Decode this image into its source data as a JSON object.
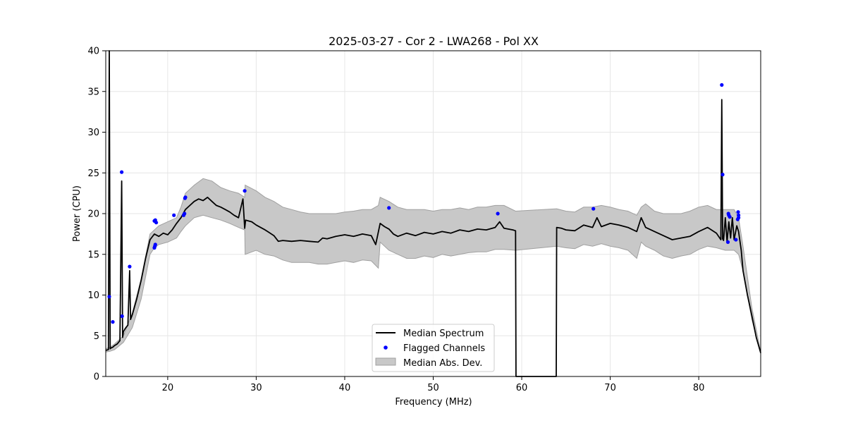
{
  "chart_data": {
    "type": "line",
    "title": "2025-03-27 - Cor 2 - LWA268 - Pol XX",
    "xlabel": "Frequency (MHz)",
    "ylabel": "Power (CPU)",
    "xlim": [
      13,
      87
    ],
    "ylim": [
      0,
      40
    ],
    "x_ticks": [
      20,
      30,
      40,
      50,
      60,
      70,
      80
    ],
    "y_ticks": [
      0,
      5,
      10,
      15,
      20,
      25,
      30,
      35,
      40
    ],
    "x_tick_labels": [
      "20",
      "30",
      "40",
      "50",
      "60",
      "70",
      "80"
    ],
    "y_tick_labels": [
      "0",
      "5",
      "10",
      "15",
      "20",
      "25",
      "30",
      "35",
      "40"
    ],
    "grid": true,
    "legend_position": "bottom-center",
    "colors": {
      "median": "#000000",
      "flagged": "#0000ff",
      "mad_fill": "#c8c8c8",
      "mad_edge": "#a0a0a0",
      "grid": "#e6e6e6"
    },
    "series": [
      {
        "name": "Median Spectrum",
        "kind": "line",
        "x": [
          13.0,
          13.3,
          13.4,
          13.5,
          13.6,
          13.8,
          14.0,
          14.3,
          14.6,
          14.8,
          14.9,
          15.0,
          15.2,
          15.5,
          15.7,
          15.8,
          16.0,
          16.5,
          17.0,
          17.5,
          18.0,
          18.5,
          19.0,
          19.5,
          20.0,
          20.5,
          21.0,
          21.5,
          22.0,
          22.5,
          23.0,
          23.5,
          24.0,
          24.5,
          25.0,
          25.5,
          26.0,
          26.5,
          27.0,
          27.5,
          28.0,
          28.5,
          28.7,
          28.8,
          29.5,
          30.0,
          31.0,
          32.0,
          32.5,
          33.0,
          34.0,
          35.0,
          36.0,
          37.0,
          37.5,
          38.0,
          39.0,
          40.0,
          41.0,
          42.0,
          43.0,
          43.5,
          44.0,
          44.5,
          45.0,
          45.5,
          46.0,
          47.0,
          48.0,
          49.0,
          50.0,
          51.0,
          52.0,
          53.0,
          54.0,
          55.0,
          56.0,
          57.0,
          57.5,
          58.0,
          59.0,
          59.3,
          59.35,
          63.9,
          63.95,
          64.5,
          65.0,
          66.0,
          67.0,
          68.0,
          68.5,
          69.0,
          70.0,
          71.0,
          72.0,
          73.0,
          73.5,
          74.0,
          75.0,
          76.0,
          77.0,
          78.0,
          79.0,
          80.0,
          81.0,
          82.0,
          82.5,
          82.6,
          82.7,
          82.8,
          83.0,
          83.2,
          83.4,
          83.6,
          83.8,
          84.0,
          84.3,
          84.5,
          84.8,
          85.0,
          85.5,
          86.0,
          86.5,
          87.0
        ],
        "values": [
          3.2,
          3.3,
          40.0,
          3.4,
          3.5,
          3.6,
          3.8,
          4.0,
          4.4,
          24.0,
          4.8,
          5.5,
          5.9,
          6.3,
          13.0,
          7.0,
          7.6,
          9.5,
          11.8,
          14.5,
          16.8,
          17.5,
          17.2,
          17.6,
          17.4,
          18.0,
          18.8,
          19.5,
          20.5,
          21.0,
          21.5,
          21.8,
          21.6,
          22.0,
          21.5,
          21.0,
          20.8,
          20.5,
          20.2,
          19.8,
          19.5,
          21.8,
          18.2,
          19.2,
          19.0,
          18.6,
          18.0,
          17.3,
          16.6,
          16.7,
          16.6,
          16.7,
          16.6,
          16.5,
          17.0,
          16.9,
          17.2,
          17.4,
          17.2,
          17.5,
          17.3,
          16.2,
          18.8,
          18.4,
          18.1,
          17.5,
          17.2,
          17.6,
          17.3,
          17.7,
          17.5,
          17.8,
          17.6,
          18.0,
          17.8,
          18.1,
          18.0,
          18.3,
          19.0,
          18.2,
          18.0,
          17.9,
          0.0,
          0.0,
          18.3,
          18.2,
          18.0,
          17.9,
          18.6,
          18.3,
          19.5,
          18.4,
          18.8,
          18.6,
          18.3,
          17.8,
          19.5,
          18.3,
          17.8,
          17.3,
          16.8,
          17.0,
          17.2,
          17.8,
          18.3,
          17.6,
          16.8,
          34.0,
          16.9,
          16.7,
          19.5,
          16.5,
          19.0,
          17.0,
          19.5,
          16.8,
          18.5,
          17.8,
          15.5,
          13.0,
          10.0,
          7.5,
          4.8,
          2.9
        ]
      },
      {
        "name": "Flagged Channels",
        "kind": "scatter",
        "x": [
          13.4,
          13.8,
          14.8,
          14.85,
          15.7,
          18.5,
          18.55,
          18.6,
          18.7,
          18.5,
          18.6,
          20.7,
          21.8,
          21.9,
          21.95,
          22.0,
          28.7,
          45.0,
          57.3,
          68.1,
          82.6,
          82.7,
          83.3,
          83.4,
          83.35,
          83.5,
          84.2,
          84.4,
          84.5,
          84.45,
          84.5
        ],
        "values": [
          9.8,
          6.7,
          25.1,
          7.4,
          13.5,
          15.8,
          16.0,
          16.2,
          18.9,
          19.1,
          19.2,
          19.8,
          19.8,
          20.0,
          21.9,
          22.0,
          22.8,
          20.7,
          20.0,
          20.6,
          35.8,
          24.8,
          16.5,
          19.8,
          20.0,
          19.6,
          16.8,
          19.3,
          19.5,
          20.2,
          19.8
        ]
      },
      {
        "name": "Median Abs. Dev.",
        "kind": "band",
        "x": [
          13.0,
          13.5,
          14.0,
          15.0,
          16.0,
          17.0,
          18.0,
          18.5,
          19.0,
          20.0,
          21.0,
          21.5,
          22.0,
          23.0,
          24.0,
          25.0,
          26.0,
          27.0,
          28.0,
          28.7,
          28.75,
          30.0,
          31.0,
          32.0,
          33.0,
          34.0,
          35.0,
          36.0,
          37.0,
          38.0,
          39.0,
          40.0,
          41.0,
          42.0,
          43.0,
          43.8,
          44.0,
          45.0,
          46.0,
          47.0,
          48.0,
          49.0,
          50.0,
          51.0,
          52.0,
          53.0,
          54.0,
          55.0,
          56.0,
          57.0,
          58.0,
          59.3,
          63.95,
          65.0,
          66.0,
          67.0,
          68.0,
          69.0,
          70.0,
          71.0,
          72.0,
          73.0,
          73.5,
          74.0,
          75.0,
          76.0,
          77.0,
          78.0,
          79.0,
          80.0,
          81.0,
          82.0,
          83.0,
          84.0,
          84.5,
          85.0,
          86.0,
          87.0
        ],
        "upper": [
          3.4,
          3.6,
          4.0,
          5.0,
          7.8,
          12.0,
          17.5,
          18.0,
          18.5,
          19.0,
          19.5,
          20.8,
          22.5,
          23.5,
          24.3,
          24.0,
          23.2,
          22.8,
          22.5,
          22.0,
          23.5,
          22.8,
          22.0,
          21.5,
          20.8,
          20.5,
          20.2,
          20.0,
          20.0,
          20.0,
          20.0,
          20.2,
          20.3,
          20.5,
          20.5,
          21.0,
          22.0,
          21.5,
          20.8,
          20.5,
          20.5,
          20.5,
          20.3,
          20.5,
          20.5,
          20.7,
          20.5,
          20.8,
          20.8,
          21.0,
          21.0,
          20.3,
          20.6,
          20.3,
          20.2,
          20.8,
          20.8,
          21.0,
          20.8,
          20.5,
          20.3,
          19.8,
          20.8,
          21.2,
          20.3,
          20.0,
          20.0,
          20.0,
          20.3,
          20.8,
          21.0,
          20.5,
          20.5,
          20.5,
          19.5,
          16.0,
          8.5,
          3.0
        ],
        "lower": [
          3.0,
          3.1,
          3.3,
          4.2,
          6.0,
          9.5,
          15.0,
          15.8,
          16.2,
          16.5,
          17.0,
          17.8,
          18.5,
          19.5,
          19.8,
          19.5,
          19.2,
          18.8,
          18.3,
          18.0,
          15.0,
          15.5,
          15.0,
          14.8,
          14.3,
          14.0,
          14.0,
          14.0,
          13.8,
          13.8,
          14.0,
          14.2,
          14.0,
          14.3,
          14.2,
          13.3,
          16.5,
          15.5,
          15.0,
          14.5,
          14.5,
          14.8,
          14.6,
          15.0,
          14.8,
          15.0,
          15.2,
          15.3,
          15.3,
          15.6,
          15.6,
          15.5,
          16.0,
          15.8,
          15.7,
          16.2,
          16.0,
          16.3,
          16.0,
          15.8,
          15.5,
          14.5,
          16.5,
          16.0,
          15.5,
          14.8,
          14.5,
          14.8,
          15.0,
          15.6,
          16.0,
          15.8,
          15.5,
          15.5,
          15.0,
          13.0,
          7.0,
          2.8
        ]
      }
    ]
  }
}
